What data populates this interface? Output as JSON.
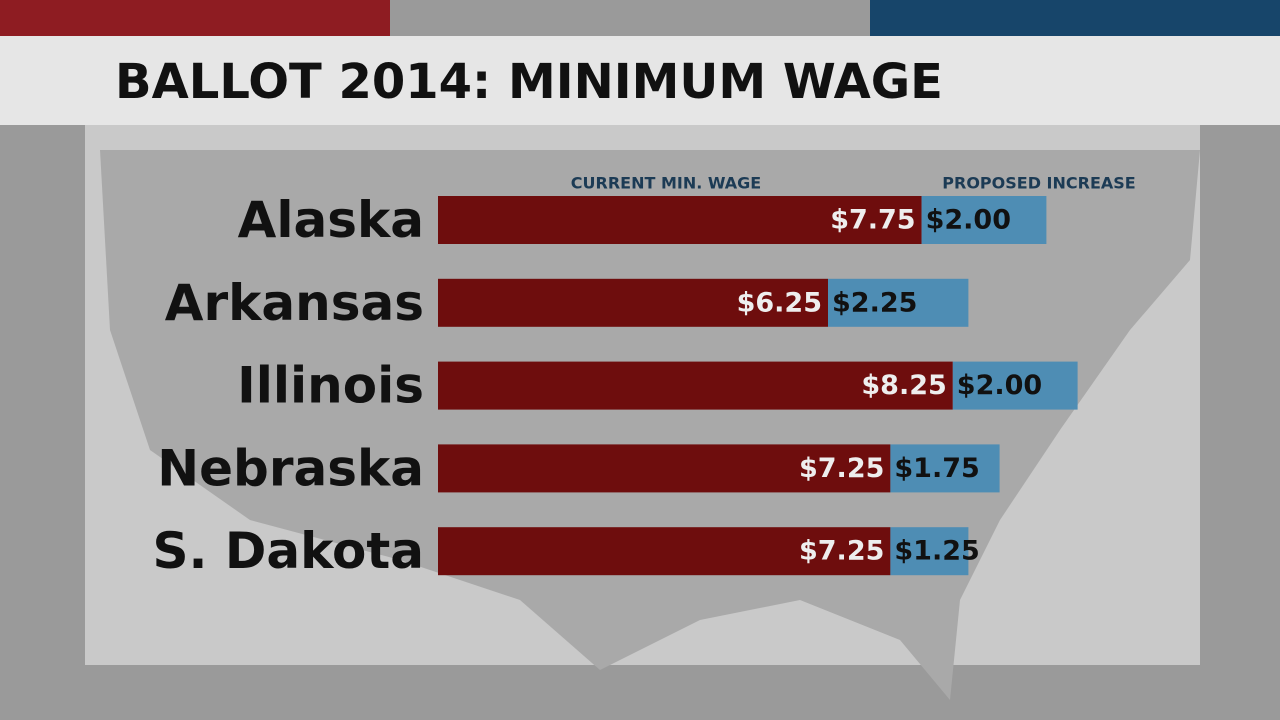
{
  "chart_data": {
    "type": "stacked-bar-horizontal",
    "title": "BALLOT 2014: MINIMUM WAGE",
    "categories": [
      "Alaska",
      "Arkansas",
      "Illinois",
      "Nebraska",
      "S. Dakota"
    ],
    "series": [
      {
        "name": "CURRENT MIN. WAGE",
        "color": "#6e0d0d",
        "values": [
          7.75,
          6.25,
          8.25,
          7.25,
          7.25
        ],
        "value_labels": [
          "$7.75",
          "$6.25",
          "$8.25",
          "$7.25",
          "$7.25"
        ]
      },
      {
        "name": "PROPOSED INCREASE",
        "color": "#4e8db4",
        "values": [
          2.0,
          2.25,
          2.0,
          1.75,
          1.25
        ],
        "value_labels": [
          "$2.00",
          "$2.25",
          "$2.00",
          "$1.75",
          "$1.25"
        ]
      }
    ]
  }
}
